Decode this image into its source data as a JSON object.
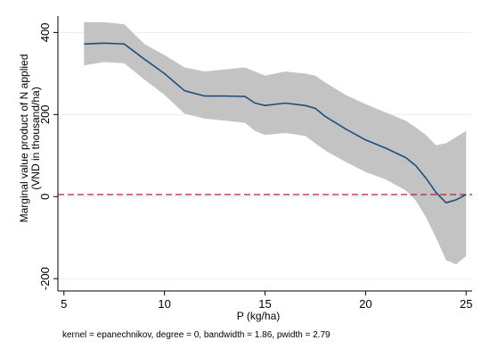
{
  "chart_data": {
    "type": "line",
    "title": "",
    "xlabel": "P (kg/ha)",
    "ylabel_lines": [
      "Marginal value product of N applied",
      "(VND in thousand/ha)"
    ],
    "note": "kernel = epanechnikov, degree = 0, bandwidth = 1.86, pwidth = 2.79",
    "xlim": [
      4.7,
      25.3
    ],
    "ylim": [
      -230,
      440
    ],
    "x_ticks": [
      5,
      10,
      15,
      20,
      25
    ],
    "y_ticks": [
      -200,
      0,
      200,
      400
    ],
    "grid": "horizontal",
    "reference_line": {
      "y": 5,
      "style": "dashed",
      "color": "#b22234"
    },
    "colors": {
      "line": "#1f4e79",
      "band": "#c3c3c3",
      "grid": "#e8eef3"
    },
    "series": [
      {
        "x": [
          6,
          7,
          8,
          9,
          10,
          11,
          12,
          13,
          14,
          14.5,
          15,
          16,
          17,
          17.5,
          18,
          19,
          20,
          21,
          22,
          22.5,
          23,
          23.5,
          24,
          24.5,
          25
        ],
        "values": [
          372,
          374,
          372,
          335,
          300,
          258,
          245,
          245,
          244,
          228,
          222,
          228,
          222,
          215,
          195,
          165,
          138,
          118,
          95,
          75,
          45,
          10,
          -15,
          -8,
          5
        ],
        "lower": [
          320,
          328,
          325,
          285,
          248,
          202,
          190,
          185,
          180,
          160,
          150,
          155,
          148,
          130,
          112,
          85,
          60,
          42,
          15,
          -10,
          -50,
          -100,
          -155,
          -165,
          -145
        ],
        "upper": [
          425,
          425,
          420,
          372,
          345,
          315,
          305,
          310,
          315,
          305,
          295,
          305,
          300,
          295,
          278,
          248,
          225,
          205,
          185,
          168,
          150,
          125,
          130,
          145,
          160
        ]
      }
    ]
  }
}
